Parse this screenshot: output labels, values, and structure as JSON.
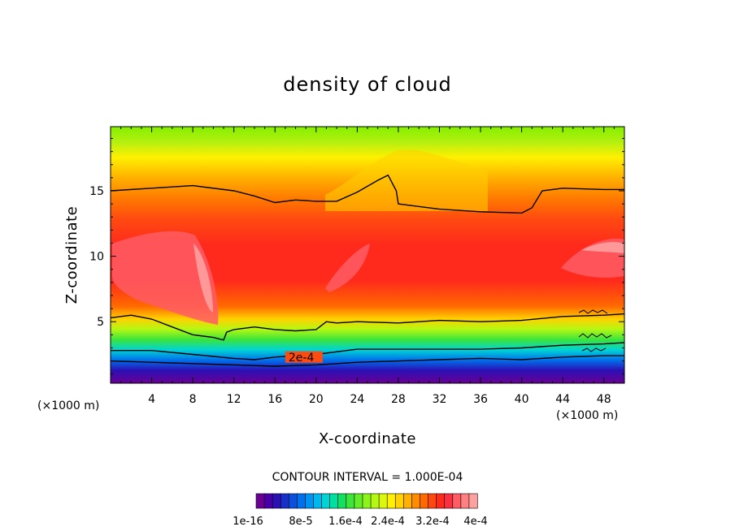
{
  "chart_data": {
    "type": "heatmap",
    "title": "density of cloud",
    "xlabel": "X-coordinate",
    "ylabel": "Z-coordinate",
    "x_unit": "(×1000 m)",
    "x_unit_right": "(×1000 m)",
    "xlim": [
      0,
      50
    ],
    "ylim": [
      0.3,
      19.9
    ],
    "xticks": [
      4,
      8,
      12,
      16,
      20,
      24,
      28,
      32,
      36,
      40,
      44,
      48
    ],
    "yticks": [
      5,
      10,
      15
    ],
    "contour_interval_text": "CONTOUR INTERVAL = 1.000E-04",
    "contour_label": "2e-4",
    "contour_label_pos": [
      17,
      2.3
    ],
    "colorbar": {
      "colors": [
        "#6a0094",
        "#4a00a8",
        "#2c10b4",
        "#1830c8",
        "#0a50dc",
        "#0070ec",
        "#0094f2",
        "#00b8f0",
        "#00d4d4",
        "#00e0a0",
        "#14e060",
        "#3ce43c",
        "#64ec28",
        "#8cf41c",
        "#b4f814",
        "#dcf80c",
        "#fff000",
        "#ffd200",
        "#ffb000",
        "#ff8c00",
        "#ff6a00",
        "#ff4810",
        "#ff2a1c",
        "#f83040",
        "#ff5c64",
        "#ff8080",
        "#ffa0a0"
      ],
      "tick_labels": [
        "1e-16",
        "8e-5",
        "1.6e-4",
        "2.4e-4",
        "3.2e-4",
        "4e-4"
      ]
    },
    "contour_lines": [
      {
        "level": "1e-4",
        "points": [
          [
            0,
            15
          ],
          [
            4,
            15.2
          ],
          [
            8,
            15.4
          ],
          [
            12,
            15.0
          ],
          [
            14,
            14.6
          ],
          [
            16,
            14.1
          ],
          [
            18,
            14.3
          ],
          [
            20,
            14.2
          ],
          [
            22,
            14.2
          ],
          [
            24,
            14.9
          ],
          [
            26,
            15.8
          ],
          [
            27,
            16.2
          ],
          [
            27.8,
            15.0
          ],
          [
            28,
            14.0
          ],
          [
            32,
            13.6
          ],
          [
            36,
            13.4
          ],
          [
            40,
            13.3
          ],
          [
            41,
            13.7
          ],
          [
            42,
            15.0
          ],
          [
            44,
            15.2
          ],
          [
            48,
            15.1
          ],
          [
            50,
            15.1
          ]
        ]
      },
      {
        "level": "2e-4",
        "points": [
          [
            0,
            5.3
          ],
          [
            2,
            5.5
          ],
          [
            4,
            5.2
          ],
          [
            6,
            4.6
          ],
          [
            8,
            4.0
          ],
          [
            10,
            3.8
          ],
          [
            11,
            3.6
          ],
          [
            11.3,
            4.2
          ],
          [
            12,
            4.4
          ],
          [
            14,
            4.6
          ],
          [
            16,
            4.4
          ],
          [
            18,
            4.3
          ],
          [
            20,
            4.4
          ],
          [
            21,
            5.0
          ],
          [
            22,
            4.9
          ],
          [
            24,
            5.0
          ],
          [
            28,
            4.9
          ],
          [
            32,
            5.1
          ],
          [
            36,
            5.0
          ],
          [
            40,
            5.1
          ],
          [
            44,
            5.4
          ],
          [
            48,
            5.5
          ],
          [
            50,
            5.6
          ]
        ]
      },
      {
        "level": "3e-4",
        "points": [
          [
            0,
            2.8
          ],
          [
            4,
            2.8
          ],
          [
            8,
            2.5
          ],
          [
            12,
            2.2
          ],
          [
            14,
            2.1
          ],
          [
            16,
            2.3
          ],
          [
            20,
            2.5
          ],
          [
            24,
            2.9
          ],
          [
            28,
            2.9
          ],
          [
            32,
            2.9
          ],
          [
            36,
            2.9
          ],
          [
            40,
            3.0
          ],
          [
            44,
            3.2
          ],
          [
            48,
            3.3
          ],
          [
            50,
            3.4
          ]
        ]
      },
      {
        "level": "2e-4",
        "points": [
          [
            0,
            2.0
          ],
          [
            4,
            1.9
          ],
          [
            8,
            1.8
          ],
          [
            12,
            1.7
          ],
          [
            16,
            1.6
          ],
          [
            20,
            1.7
          ],
          [
            24,
            1.9
          ],
          [
            28,
            2.0
          ],
          [
            32,
            2.1
          ],
          [
            36,
            2.2
          ],
          [
            40,
            2.1
          ],
          [
            44,
            2.3
          ],
          [
            48,
            2.4
          ],
          [
            50,
            2.4
          ]
        ]
      }
    ]
  }
}
